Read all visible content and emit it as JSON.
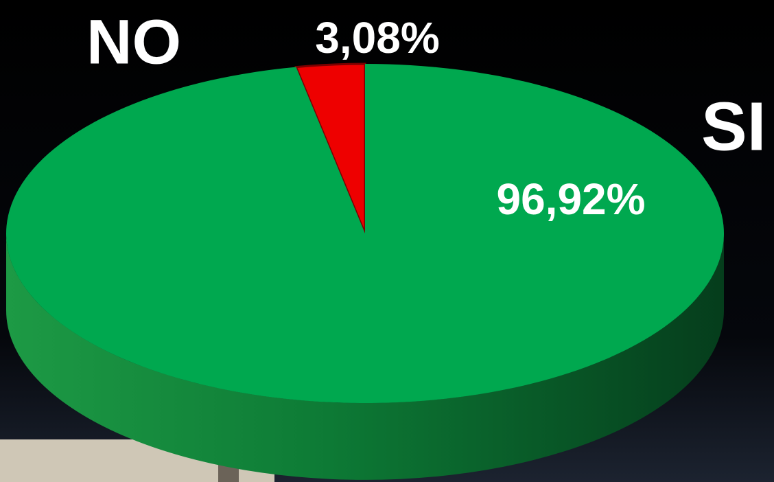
{
  "chart_data": {
    "type": "pie",
    "categories": [
      "NO",
      "SI"
    ],
    "values": [
      3.08,
      96.92
    ],
    "value_labels": [
      "3,08%",
      "96,92%"
    ],
    "colors": [
      "#ee0000",
      "#00a84f"
    ]
  }
}
